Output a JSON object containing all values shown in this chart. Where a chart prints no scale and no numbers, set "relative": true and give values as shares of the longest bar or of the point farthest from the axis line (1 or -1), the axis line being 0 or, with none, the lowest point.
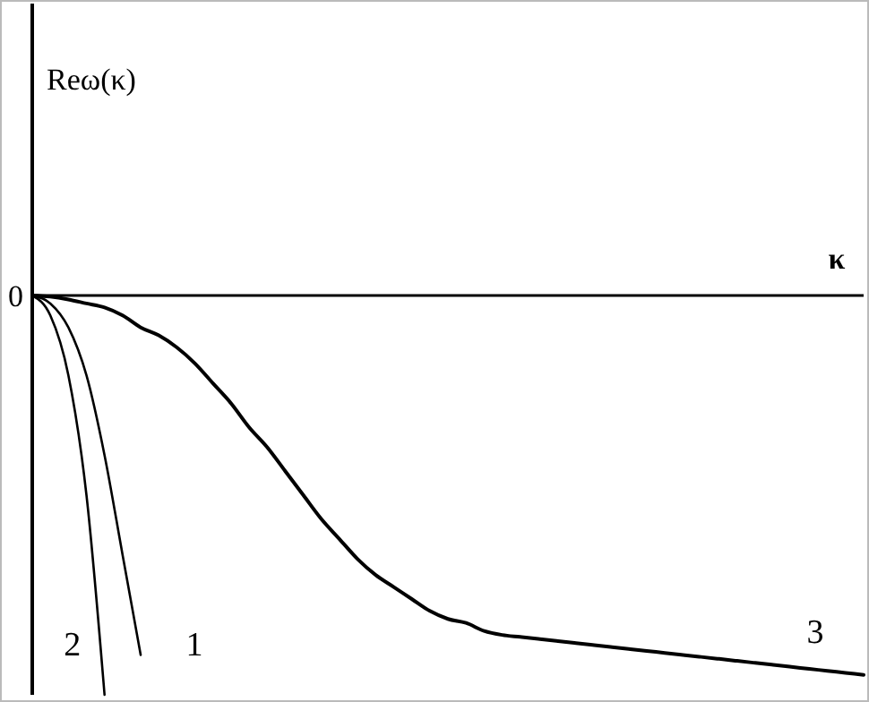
{
  "chart_data": {
    "type": "line",
    "relative": true,
    "xlabel": "κ",
    "annotations": [
      "0",
      "Reω(κ)"
    ],
    "line_style": "solid",
    "marker": "none",
    "categories": [
      null,
      null,
      null,
      null,
      null,
      null,
      null,
      null,
      null,
      null,
      null,
      null,
      null,
      null,
      null,
      null,
      null,
      null,
      null,
      null,
      null,
      null,
      null,
      null,
      null,
      null,
      null,
      null,
      null,
      null,
      null,
      null,
      null,
      null,
      null,
      null,
      null,
      null,
      null,
      null,
      null,
      null,
      null,
      null,
      null,
      null,
      null
    ],
    "series": [
      {
        "name": "1",
        "color": "#000000",
        "values": [
          0,
          -0.02,
          -0.08,
          -0.2,
          -0.4,
          -0.65,
          -0.9,
          null,
          null,
          null,
          null,
          null,
          null,
          null,
          null,
          null,
          null,
          null,
          null,
          null,
          null,
          null,
          null,
          null,
          null,
          null,
          null,
          null,
          null,
          null,
          null,
          null,
          null,
          null,
          null,
          null,
          null,
          null,
          null,
          null,
          null,
          null,
          null,
          null,
          null,
          null,
          null
        ]
      },
      {
        "name": "2",
        "color": "#000000",
        "values": [
          0,
          -0.05,
          -0.2,
          -0.5,
          -1,
          null,
          null,
          null,
          null,
          null,
          null,
          null,
          null,
          null,
          null,
          null,
          null,
          null,
          null,
          null,
          null,
          null,
          null,
          null,
          null,
          null,
          null,
          null,
          null,
          null,
          null,
          null,
          null,
          null,
          null,
          null,
          null,
          null,
          null,
          null,
          null,
          null,
          null,
          null,
          null,
          null,
          null
        ]
      },
      {
        "name": "3",
        "color": "#000000",
        "values": [
          0,
          -0.003,
          -0.01,
          -0.02,
          -0.03,
          -0.05,
          -0.08,
          -0.1,
          -0.13,
          -0.17,
          -0.22,
          -0.27,
          -0.33,
          -0.38,
          -0.44,
          -0.5,
          -0.56,
          -0.61,
          -0.66,
          -0.7,
          -0.73,
          -0.76,
          -0.79,
          -0.81,
          -0.82,
          -0.84,
          -0.85,
          -0.855,
          -0.86,
          -0.865,
          -0.87,
          -0.875,
          -0.88,
          -0.885,
          -0.89,
          -0.895,
          -0.9,
          -0.905,
          -0.91,
          -0.915,
          -0.92,
          -0.925,
          -0.93,
          -0.935,
          -0.94,
          -0.945,
          -0.95
        ]
      }
    ]
  }
}
